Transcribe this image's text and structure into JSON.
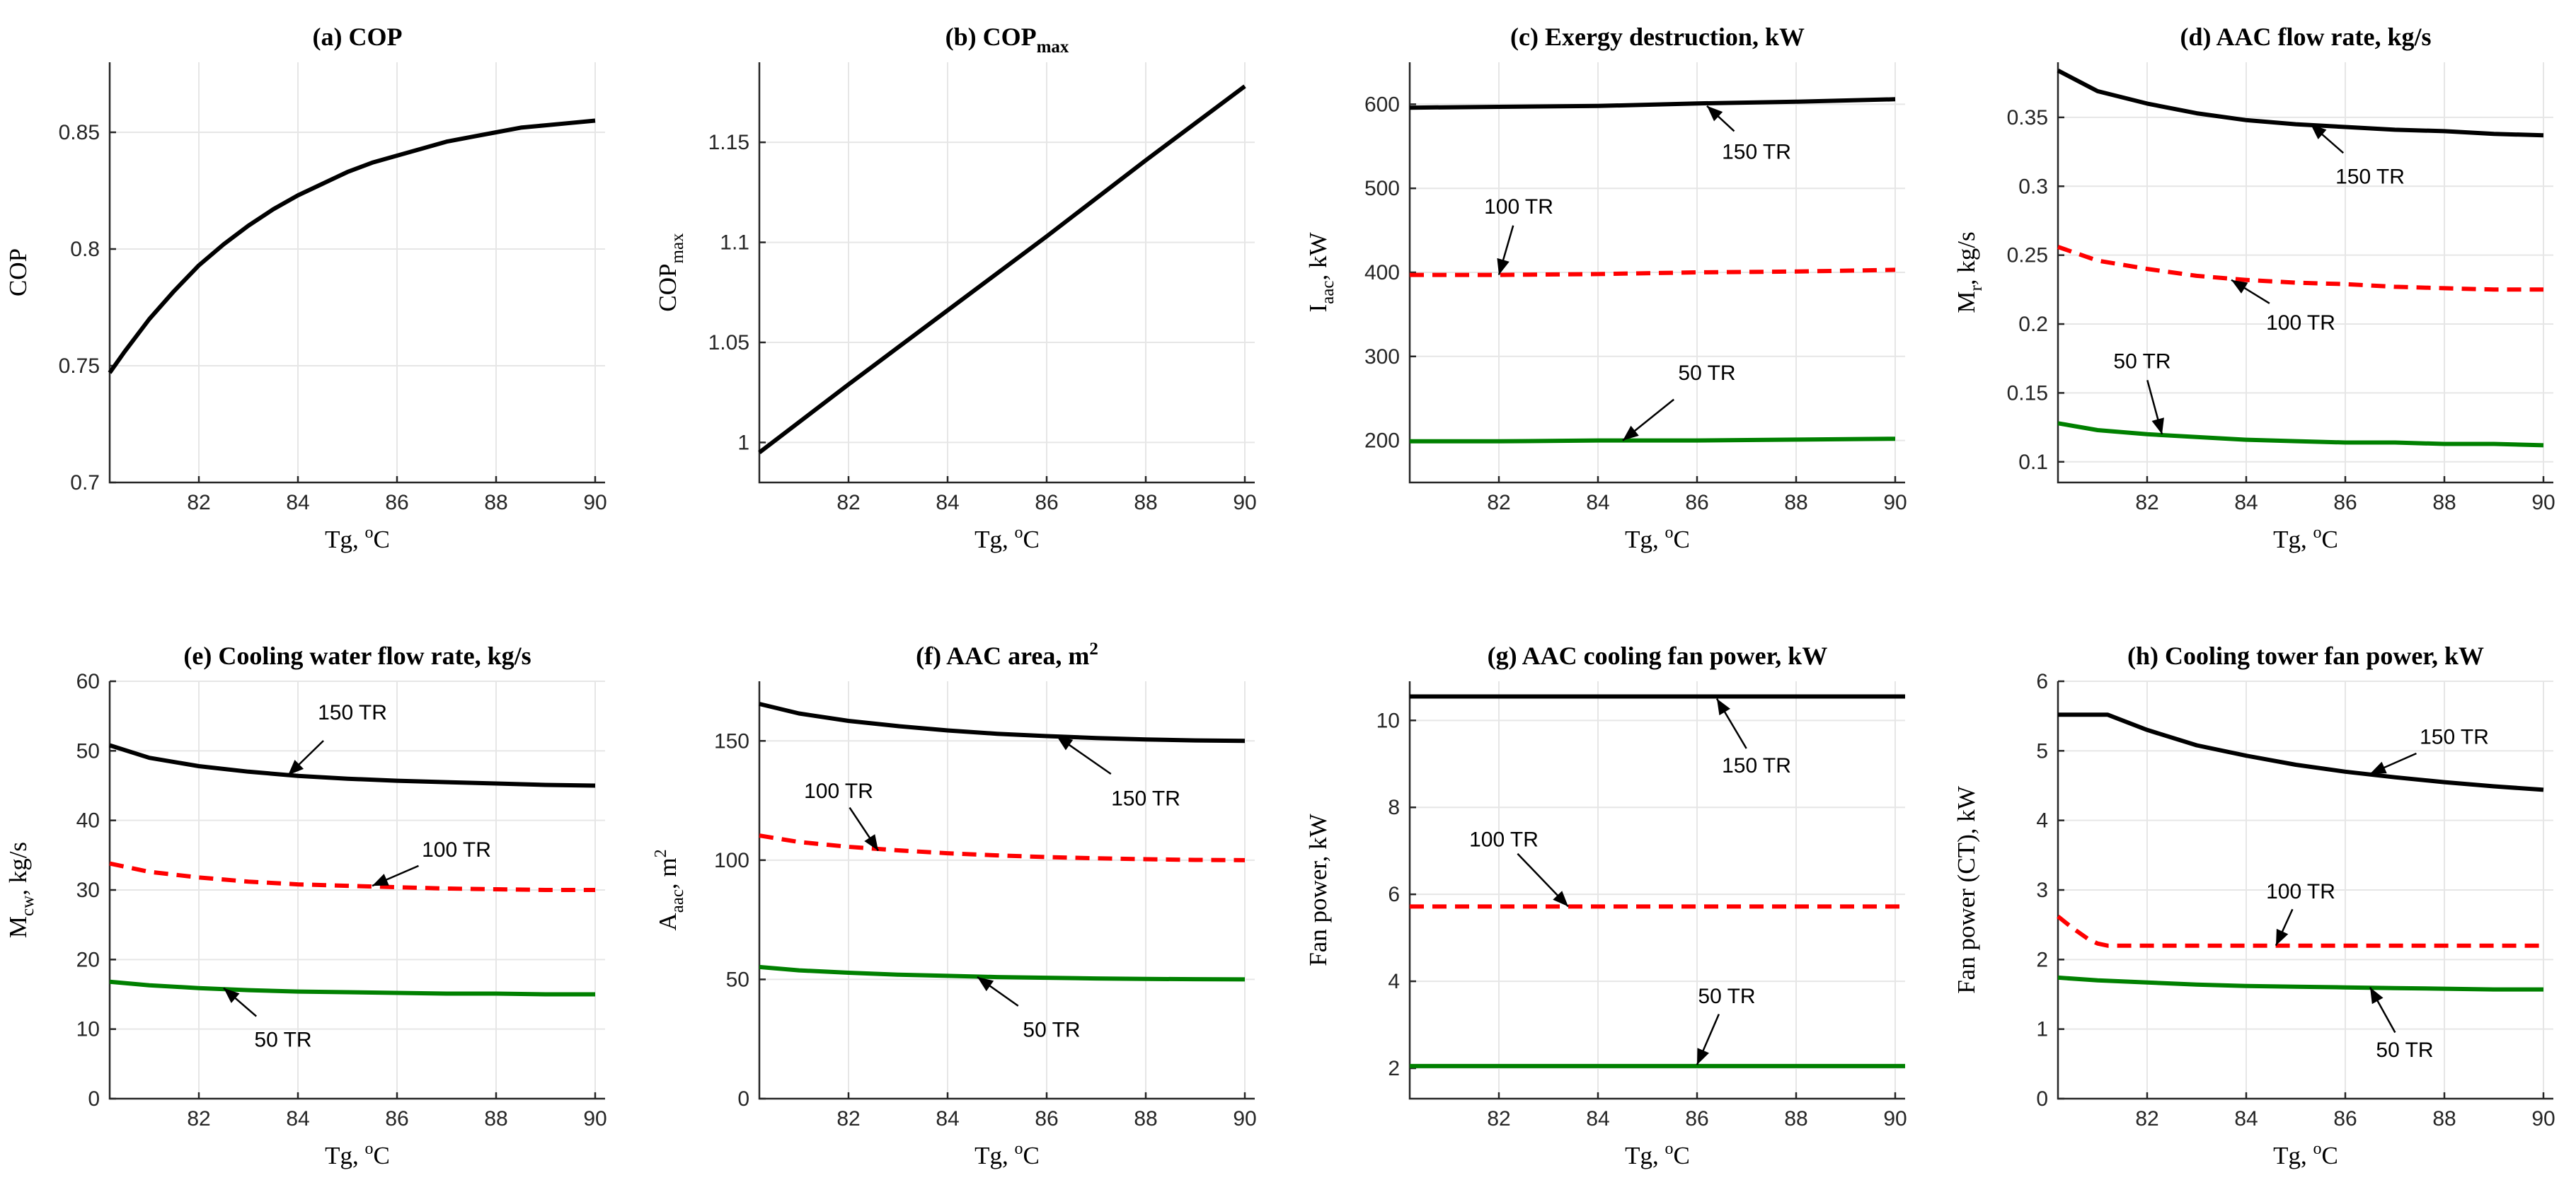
{
  "chart_data": [
    {
      "type": "line",
      "title": "(a) COP",
      "xlabel": "Tg, oC",
      "ylabel": "COP",
      "xlim": [
        80.2,
        90.2
      ],
      "ylim": [
        0.7,
        0.88
      ],
      "xticks": [
        82,
        84,
        86,
        88,
        90
      ],
      "yticks": [
        0.7,
        0.75,
        0.8,
        0.85
      ],
      "series": [
        {
          "name": "",
          "color": "#000000",
          "dash": "solid",
          "x": [
            80.2,
            80.5,
            81,
            81.5,
            82,
            82.5,
            83,
            83.5,
            84,
            84.5,
            85,
            85.5,
            86,
            86.5,
            87,
            87.5,
            88,
            88.5,
            89,
            89.5,
            90
          ],
          "y": [
            0.747,
            0.756,
            0.77,
            0.782,
            0.793,
            0.802,
            0.81,
            0.817,
            0.823,
            0.828,
            0.833,
            0.837,
            0.84,
            0.843,
            0.846,
            0.848,
            0.85,
            0.852,
            0.853,
            0.854,
            0.855
          ]
        }
      ],
      "annotations": []
    },
    {
      "type": "line",
      "title": "(b) COP",
      "title_sub": "max",
      "xlabel": "Tg, oC",
      "ylabel": "COP",
      "ylabel_sub": "max",
      "xlim": [
        80.2,
        90.2
      ],
      "ylim": [
        0.98,
        1.19
      ],
      "xticks": [
        82,
        84,
        86,
        88,
        90
      ],
      "yticks": [
        1,
        1.05,
        1.1,
        1.15
      ],
      "series": [
        {
          "name": "",
          "color": "#000000",
          "dash": "solid",
          "x": [
            80.2,
            82,
            84,
            86,
            88,
            90
          ],
          "y": [
            0.995,
            1.029,
            1.066,
            1.103,
            1.141,
            1.178
          ]
        }
      ],
      "annotations": []
    },
    {
      "type": "line",
      "title": "(c) Exergy destruction, kW",
      "xlabel": "Tg, oC",
      "ylabel": "I",
      "ylabel_sub": "aac",
      "ylabel_post": ", kW",
      "xlim": [
        80.2,
        90.2
      ],
      "ylim": [
        150,
        650
      ],
      "xticks": [
        82,
        84,
        86,
        88,
        90
      ],
      "yticks": [
        200,
        300,
        400,
        500,
        600
      ],
      "series": [
        {
          "name": "150 TR",
          "color": "#000000",
          "dash": "solid",
          "x": [
            80.2,
            82,
            84,
            86,
            88,
            90
          ],
          "y": [
            596,
            597,
            598,
            601,
            603,
            606
          ]
        },
        {
          "name": "100 TR",
          "color": "#ff0000",
          "dash": "dashed",
          "x": [
            80.2,
            82,
            84,
            86,
            88,
            90
          ],
          "y": [
            397,
            397,
            398,
            400,
            401,
            403
          ]
        },
        {
          "name": "50 TR",
          "color": "#008000",
          "dash": "solid",
          "x": [
            80.2,
            82,
            84,
            86,
            88,
            90
          ],
          "y": [
            199,
            199,
            200,
            200,
            201,
            202
          ]
        }
      ],
      "annotations": [
        {
          "text": "150 TR",
          "tx": 87.2,
          "ty": 535,
          "ax": 86.2,
          "ay": 598
        },
        {
          "text": "100 TR",
          "tx": 82.4,
          "ty": 470,
          "ax": 82.0,
          "ay": 397
        },
        {
          "text": "50 TR",
          "tx": 86.2,
          "ty": 272,
          "ax": 84.5,
          "ay": 200
        }
      ]
    },
    {
      "type": "line",
      "title": "(d) AAC flow rate, kg/s",
      "xlabel": "Tg, oC",
      "ylabel": "M",
      "ylabel_sub": "r",
      "ylabel_post": ", kg/s",
      "xlim": [
        80.2,
        90.2
      ],
      "ylim": [
        0.085,
        0.39
      ],
      "xticks": [
        82,
        84,
        86,
        88,
        90
      ],
      "yticks": [
        0.1,
        0.15,
        0.2,
        0.25,
        0.3,
        0.35
      ],
      "series": [
        {
          "name": "150 TR",
          "color": "#000000",
          "dash": "solid",
          "x": [
            80.2,
            81,
            82,
            83,
            84,
            85,
            86,
            87,
            88,
            89,
            90
          ],
          "y": [
            0.384,
            0.369,
            0.36,
            0.353,
            0.348,
            0.345,
            0.343,
            0.341,
            0.34,
            0.338,
            0.337
          ]
        },
        {
          "name": "100 TR",
          "color": "#ff0000",
          "dash": "dashed",
          "x": [
            80.2,
            81,
            82,
            83,
            84,
            85,
            86,
            87,
            88,
            89,
            90
          ],
          "y": [
            0.256,
            0.246,
            0.24,
            0.235,
            0.232,
            0.23,
            0.229,
            0.227,
            0.226,
            0.225,
            0.225
          ]
        },
        {
          "name": "50 TR",
          "color": "#008000",
          "dash": "solid",
          "x": [
            80.2,
            81,
            82,
            83,
            84,
            85,
            86,
            87,
            88,
            89,
            90
          ],
          "y": [
            0.128,
            0.123,
            0.12,
            0.118,
            0.116,
            0.115,
            0.114,
            0.114,
            0.113,
            0.113,
            0.112
          ]
        }
      ],
      "annotations": [
        {
          "text": "150 TR",
          "tx": 86.5,
          "ty": 0.302,
          "ax": 85.3,
          "ay": 0.345
        },
        {
          "text": "100 TR",
          "tx": 85.1,
          "ty": 0.196,
          "ax": 83.7,
          "ay": 0.232
        },
        {
          "text": "50 TR",
          "tx": 81.9,
          "ty": 0.168,
          "ax": 82.3,
          "ay": 0.12
        }
      ]
    },
    {
      "type": "line",
      "title": "(e) Cooling water flow rate, kg/s",
      "xlabel": "Tg, oC",
      "ylabel": "M",
      "ylabel_sub": "cw",
      "ylabel_post": ", kg/s",
      "xlim": [
        80.2,
        90.2
      ],
      "ylim": [
        0,
        60
      ],
      "xticks": [
        82,
        84,
        86,
        88,
        90
      ],
      "yticks": [
        0,
        10,
        20,
        30,
        40,
        50,
        60
      ],
      "series": [
        {
          "name": "150 TR",
          "color": "#000000",
          "dash": "solid",
          "x": [
            80.2,
            81,
            82,
            83,
            84,
            85,
            86,
            87,
            88,
            89,
            90
          ],
          "y": [
            50.8,
            49.0,
            47.8,
            47.0,
            46.4,
            46.0,
            45.7,
            45.5,
            45.3,
            45.1,
            45.0
          ]
        },
        {
          "name": "100 TR",
          "color": "#ff0000",
          "dash": "dashed",
          "x": [
            80.2,
            81,
            82,
            83,
            84,
            85,
            86,
            87,
            88,
            89,
            90
          ],
          "y": [
            33.8,
            32.6,
            31.8,
            31.2,
            30.8,
            30.6,
            30.4,
            30.2,
            30.1,
            30.0,
            30.0
          ]
        },
        {
          "name": "50 TR",
          "color": "#008000",
          "dash": "solid",
          "x": [
            80.2,
            81,
            82,
            83,
            84,
            85,
            86,
            87,
            88,
            89,
            90
          ],
          "y": [
            16.8,
            16.3,
            15.9,
            15.6,
            15.4,
            15.3,
            15.2,
            15.1,
            15.1,
            15.0,
            15.0
          ]
        }
      ],
      "annotations": [
        {
          "text": "150 TR",
          "tx": 85.1,
          "ty": 54.5,
          "ax": 83.8,
          "ay": 46.5
        },
        {
          "text": "100 TR",
          "tx": 87.2,
          "ty": 34.8,
          "ax": 85.5,
          "ay": 30.6
        },
        {
          "text": "50 TR",
          "tx": 83.7,
          "ty": 7.5,
          "ax": 82.5,
          "ay": 15.9
        }
      ]
    },
    {
      "type": "line",
      "title": "(f) AAC area, m",
      "title_sup": "2",
      "xlabel": "Tg, oC",
      "ylabel": "A",
      "ylabel_sub": "aac",
      "ylabel_post": ", m",
      "ylabel_sup": "2",
      "xlim": [
        80.2,
        90.2
      ],
      "ylim": [
        0,
        175
      ],
      "xticks": [
        82,
        84,
        86,
        88,
        90
      ],
      "yticks": [
        0,
        50,
        100,
        150
      ],
      "series": [
        {
          "name": "150 TR",
          "color": "#000000",
          "dash": "solid",
          "x": [
            80.2,
            81,
            82,
            83,
            84,
            85,
            86,
            87,
            88,
            89,
            90
          ],
          "y": [
            165.5,
            161.5,
            158.4,
            156.2,
            154.4,
            153.0,
            152.0,
            151.2,
            150.6,
            150.2,
            150.0
          ]
        },
        {
          "name": "100 TR",
          "color": "#ff0000",
          "dash": "dashed",
          "x": [
            80.2,
            81,
            82,
            83,
            84,
            85,
            86,
            87,
            88,
            89,
            90
          ],
          "y": [
            110.3,
            107.6,
            105.6,
            104.1,
            102.9,
            102.0,
            101.3,
            100.8,
            100.4,
            100.1,
            100.0
          ]
        },
        {
          "name": "50 TR",
          "color": "#008000",
          "dash": "solid",
          "x": [
            80.2,
            81,
            82,
            83,
            84,
            85,
            86,
            87,
            88,
            89,
            90
          ],
          "y": [
            55.2,
            53.8,
            52.8,
            52.0,
            51.5,
            51.0,
            50.7,
            50.4,
            50.2,
            50.1,
            50.0
          ]
        }
      ],
      "annotations": [
        {
          "text": "150 TR",
          "tx": 88.0,
          "ty": 123,
          "ax": 86.2,
          "ay": 152
        },
        {
          "text": "100 TR",
          "tx": 81.8,
          "ty": 126,
          "ax": 82.6,
          "ay": 104
        },
        {
          "text": "50 TR",
          "tx": 86.1,
          "ty": 26,
          "ax": 84.6,
          "ay": 51
        }
      ]
    },
    {
      "type": "line",
      "title": "(g) AAC cooling fan power, kW",
      "xlabel": "Tg, oC",
      "ylabel": "Fan power, kW",
      "xlim": [
        80.2,
        90.2
      ],
      "ylim": [
        1.3,
        10.9
      ],
      "xticks": [
        82,
        84,
        86,
        88,
        90
      ],
      "yticks": [
        2,
        4,
        6,
        8,
        10
      ],
      "series": [
        {
          "name": "150 TR",
          "color": "#000000",
          "dash": "solid",
          "x": [
            80.2,
            90.2
          ],
          "y": [
            10.55,
            10.55
          ]
        },
        {
          "name": "100 TR",
          "color": "#ff0000",
          "dash": "dashed",
          "x": [
            80.2,
            90.2
          ],
          "y": [
            5.72,
            5.72
          ]
        },
        {
          "name": "50 TR",
          "color": "#008000",
          "dash": "solid",
          "x": [
            80.2,
            90.2
          ],
          "y": [
            2.05,
            2.05
          ]
        }
      ],
      "annotations": [
        {
          "text": "150 TR",
          "tx": 87.2,
          "ty": 8.8,
          "ax": 86.4,
          "ay": 10.5
        },
        {
          "text": "100 TR",
          "tx": 82.1,
          "ty": 7.1,
          "ax": 83.4,
          "ay": 5.72
        },
        {
          "text": "50 TR",
          "tx": 86.6,
          "ty": 3.5,
          "ax": 86.0,
          "ay": 2.08
        }
      ]
    },
    {
      "type": "line",
      "title": "(h) Cooling tower fan power, kW",
      "xlabel": "Tg, oC",
      "ylabel": "Fan power (CT), kW",
      "xlim": [
        80.2,
        90.2
      ],
      "ylim": [
        0,
        6
      ],
      "xticks": [
        82,
        84,
        86,
        88,
        90
      ],
      "yticks": [
        0,
        1,
        2,
        3,
        4,
        5,
        6
      ],
      "series": [
        {
          "name": "150 TR",
          "color": "#000000",
          "dash": "solid",
          "x": [
            80.2,
            81.2,
            82,
            83,
            84,
            85,
            86,
            87,
            88,
            89,
            90
          ],
          "y": [
            5.52,
            5.52,
            5.3,
            5.08,
            4.93,
            4.8,
            4.7,
            4.62,
            4.55,
            4.49,
            4.44
          ]
        },
        {
          "name": "100 TR",
          "color": "#ff0000",
          "dash": "dashed",
          "x": [
            80.2,
            80.5,
            80.8,
            81,
            81.2,
            82,
            84,
            86,
            88,
            90
          ],
          "y": [
            2.62,
            2.45,
            2.3,
            2.23,
            2.2,
            2.2,
            2.2,
            2.2,
            2.2,
            2.2
          ]
        },
        {
          "name": "50 TR",
          "color": "#008000",
          "dash": "solid",
          "x": [
            80.2,
            81,
            82,
            83,
            84,
            85,
            86,
            87,
            88,
            89,
            90
          ],
          "y": [
            1.74,
            1.7,
            1.67,
            1.64,
            1.62,
            1.61,
            1.6,
            1.59,
            1.58,
            1.57,
            1.57
          ]
        }
      ],
      "annotations": [
        {
          "text": "150 TR",
          "tx": 88.2,
          "ty": 5.1,
          "ax": 86.5,
          "ay": 4.67
        },
        {
          "text": "100 TR",
          "tx": 85.1,
          "ty": 2.88,
          "ax": 84.6,
          "ay": 2.2
        },
        {
          "text": "50 TR",
          "tx": 87.2,
          "ty": 0.6,
          "ax": 86.5,
          "ay": 1.6
        }
      ]
    }
  ]
}
